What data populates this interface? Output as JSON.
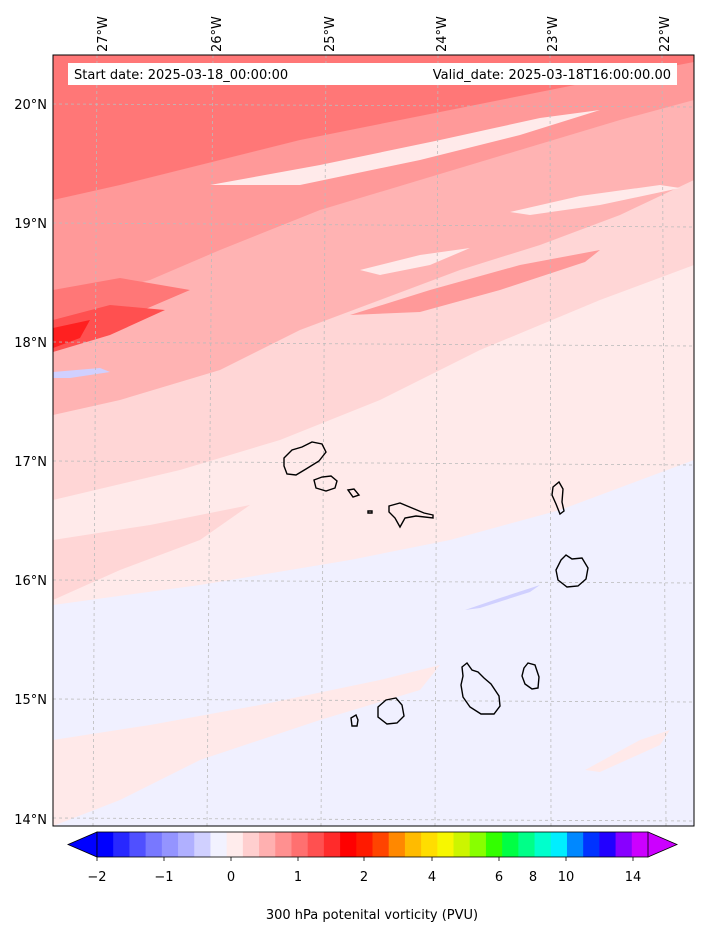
{
  "map": {
    "start_label": "Start date: 2025-03-18_00:00:00",
    "valid_label": "Valid_date: 2025-03-18T16:00:00.00",
    "lon_labels": [
      "27°W",
      "26°W",
      "25°W",
      "24°W",
      "23°W",
      "22°W"
    ],
    "lat_labels": [
      "20°N",
      "19°N",
      "18°N",
      "17°N",
      "16°N",
      "15°N",
      "14°N"
    ],
    "colors": {
      "frame": "#000000",
      "gridline": "#bbbbbb",
      "coast": "#000000"
    }
  },
  "colorbar": {
    "title": "300 hPa potenital vorticity (PVU)",
    "tick_labels": [
      "−2",
      "−1",
      "0",
      "1",
      "2",
      "4",
      "6",
      "8",
      "10",
      "14"
    ],
    "colors": [
      "#0000ff",
      "#2828ff",
      "#5050ff",
      "#7878ff",
      "#9494ff",
      "#b0b0ff",
      "#d0d0ff",
      "#f2f2ff",
      "#ffecec",
      "#ffcfcf",
      "#ffb0b0",
      "#ff9090",
      "#ff7070",
      "#ff5050",
      "#ff2b2b",
      "#ff0000",
      "#ff1a00",
      "#ff4400",
      "#ff8800",
      "#ffbb00",
      "#ffdd00",
      "#f7f700",
      "#ccf500",
      "#88ff00",
      "#33ff00",
      "#00ff44",
      "#00ff88",
      "#00ffcc",
      "#00eeff",
      "#0088ff",
      "#0033ff",
      "#2200ff",
      "#8800ff",
      "#cc00ff"
    ],
    "under_color": "#0000ff",
    "over_color": "#cc00ff"
  }
}
